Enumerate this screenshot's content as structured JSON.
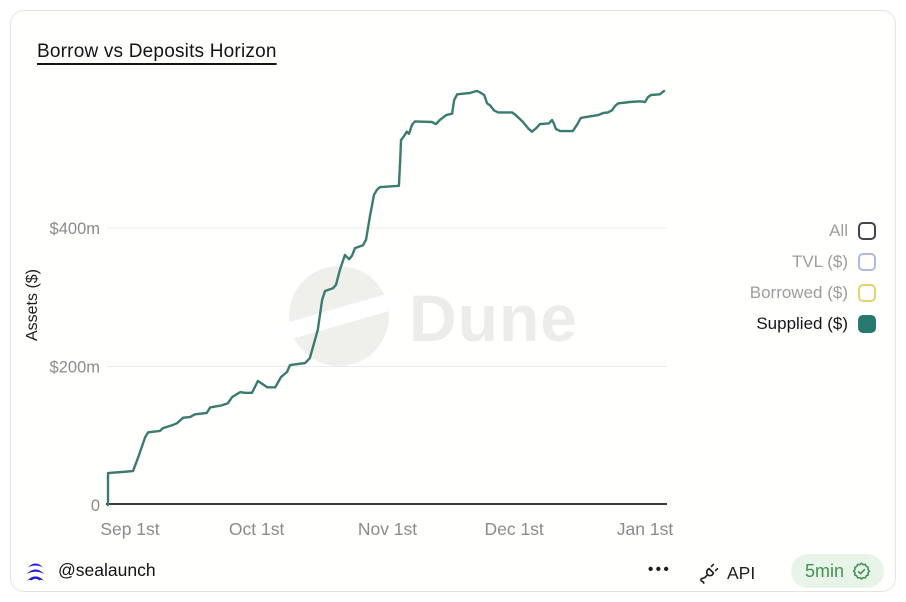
{
  "header": {
    "title": "Borrow vs Deposits Horizon"
  },
  "chart_data": {
    "type": "line",
    "title": "Borrow vs Deposits Horizon",
    "xlabel": "",
    "ylabel": "Assets ($)",
    "grid": "horizontal",
    "legend_position": "right",
    "ylim": [
      0,
      620
    ],
    "xlim_days_from_sep1": [
      -5.5,
      127
    ],
    "y_ticks": [
      {
        "value": 0,
        "label": "0"
      },
      {
        "value": 200,
        "label": "$200m"
      },
      {
        "value": 400,
        "label": "$400m"
      }
    ],
    "x_ticks": [
      {
        "day": 0,
        "label": "Sep 1st"
      },
      {
        "day": 30,
        "label": "Oct 1st"
      },
      {
        "day": 61,
        "label": "Nov 1st"
      },
      {
        "day": 91,
        "label": "Dec 1st"
      },
      {
        "day": 122,
        "label": "Jan 1st"
      }
    ],
    "series": [
      {
        "name": "Supplied ($)",
        "color": "#3b7b6e",
        "unit": "$m",
        "points": [
          [
            -5.2,
            0
          ],
          [
            -5.2,
            46
          ],
          [
            0.7,
            49
          ],
          [
            1.9,
            68
          ],
          [
            3.6,
            98
          ],
          [
            4.3,
            105
          ],
          [
            7.1,
            107
          ],
          [
            7.8,
            111
          ],
          [
            9.9,
            115
          ],
          [
            11.1,
            118
          ],
          [
            12.6,
            126
          ],
          [
            14.2,
            127
          ],
          [
            15.4,
            131
          ],
          [
            18.2,
            133
          ],
          [
            19,
            141
          ],
          [
            21.8,
            144
          ],
          [
            23.2,
            147
          ],
          [
            24.2,
            156
          ],
          [
            26.1,
            163
          ],
          [
            27.2,
            162
          ],
          [
            28.9,
            162
          ],
          [
            30.3,
            179
          ],
          [
            31.3,
            175
          ],
          [
            32.5,
            170
          ],
          [
            34.4,
            170
          ],
          [
            35.8,
            185
          ],
          [
            37.2,
            192
          ],
          [
            37.9,
            202
          ],
          [
            41.5,
            205
          ],
          [
            42.6,
            212
          ],
          [
            43.8,
            238
          ],
          [
            44.5,
            253
          ],
          [
            45.5,
            296
          ],
          [
            46.2,
            309
          ],
          [
            48.1,
            313
          ],
          [
            48.8,
            318
          ],
          [
            49.7,
            339
          ],
          [
            50.9,
            361
          ],
          [
            51.9,
            355
          ],
          [
            52.6,
            360
          ],
          [
            53.3,
            371
          ],
          [
            55.2,
            375
          ],
          [
            55.9,
            383
          ],
          [
            56.9,
            419
          ],
          [
            57.8,
            448
          ],
          [
            58.5,
            455
          ],
          [
            59.2,
            459
          ],
          [
            63.7,
            461
          ],
          [
            64,
            498
          ],
          [
            64.2,
            527
          ],
          [
            64.7,
            531
          ],
          [
            65.6,
            539
          ],
          [
            66.1,
            536
          ],
          [
            66.8,
            549
          ],
          [
            67.5,
            554
          ],
          [
            71.5,
            553
          ],
          [
            72.5,
            550
          ],
          [
            73.4,
            556
          ],
          [
            74.9,
            563
          ],
          [
            76.3,
            565
          ],
          [
            76.8,
            585
          ],
          [
            77.5,
            593
          ],
          [
            80.5,
            595
          ],
          [
            82.2,
            598
          ],
          [
            82.9,
            596
          ],
          [
            83.9,
            592
          ],
          [
            84.6,
            580
          ],
          [
            85.3,
            577
          ],
          [
            86.2,
            570
          ],
          [
            87.2,
            567
          ],
          [
            90.5,
            567
          ],
          [
            91.4,
            563
          ],
          [
            93.1,
            553
          ],
          [
            94.3,
            544
          ],
          [
            95.2,
            539
          ],
          [
            96.2,
            544
          ],
          [
            97.1,
            550
          ],
          [
            99.2,
            551
          ],
          [
            100,
            556
          ],
          [
            100.4,
            551
          ],
          [
            100.9,
            543
          ],
          [
            101.9,
            540
          ],
          [
            104.9,
            540
          ],
          [
            105.9,
            549
          ],
          [
            106.8,
            559
          ],
          [
            107.8,
            560
          ],
          [
            110.9,
            563
          ],
          [
            112.1,
            566
          ],
          [
            113.2,
            567
          ],
          [
            114.2,
            570
          ],
          [
            114.9,
            576
          ],
          [
            115.6,
            580
          ],
          [
            118.4,
            582
          ],
          [
            120.8,
            583
          ],
          [
            122,
            582
          ],
          [
            122.7,
            589
          ],
          [
            123.4,
            592
          ],
          [
            125.5,
            593
          ],
          [
            126.5,
            598
          ]
        ]
      }
    ]
  },
  "legend": {
    "items": [
      {
        "label": "All",
        "checked": false,
        "marker_color": "#43444d",
        "text_color": "#9c9c9c"
      },
      {
        "label": "TVL ($)",
        "checked": false,
        "marker_color": "#b0b9e6",
        "text_color": "#9c9c9c"
      },
      {
        "label": "Borrowed ($)",
        "checked": false,
        "marker_color": "#e5d26e",
        "text_color": "#9c9c9c"
      },
      {
        "label": "Supplied ($)",
        "checked": true,
        "marker_color": "#26796c",
        "text_color": "#161616"
      }
    ]
  },
  "watermark": {
    "text": "Dune"
  },
  "footer": {
    "author": "@sealaunch",
    "more_label": "•••",
    "api_label": "API",
    "refresh_label": "5min",
    "accent_green": "#44925a",
    "badge_bg": "#e9f4e9",
    "logo_color": "#2218e4"
  }
}
